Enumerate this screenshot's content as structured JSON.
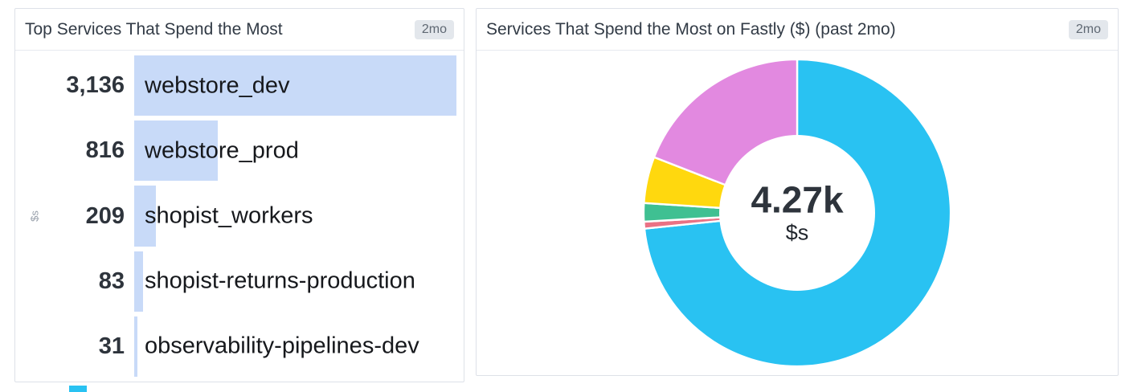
{
  "panels": [
    {
      "title": "Top Services That Spend the Most",
      "timeframe_badge": "2mo"
    },
    {
      "title": "Services That Spend the Most on Fastly ($) (past 2mo)",
      "timeframe_badge": "2mo"
    }
  ],
  "chart_data": [
    {
      "type": "bar",
      "orientation": "horizontal_toplist",
      "title": "Top Services That Spend the Most",
      "ylabel": "$s",
      "categories": [
        "webstore_dev",
        "webstore_prod",
        "shopist_workers",
        "shopist-returns-production",
        "observability-pipelines-dev"
      ],
      "values": [
        3136,
        816,
        209,
        83,
        31
      ],
      "display_values": [
        "3,136",
        "816",
        "209",
        "83",
        "31"
      ],
      "bar_color": "#c8daf8",
      "xlim": [
        0,
        3136
      ],
      "grid": false,
      "legend": "none"
    },
    {
      "type": "pie",
      "donut": true,
      "title": "Services That Spend the Most on Fastly ($) (past 2mo)",
      "labels": [
        "webstore_dev",
        "webstore_prod",
        "shopist_workers",
        "shopist-returns-production",
        "observability-pipelines-dev"
      ],
      "values": [
        3136,
        816,
        209,
        83,
        31
      ],
      "colors": [
        "#29c2f2",
        "#e289e0",
        "#ffd80e",
        "#3fc092",
        "#ea7285"
      ],
      "center_value": "4.27k",
      "center_unit": "$s",
      "start_angle": "top",
      "clockwise_draw_order": [
        0,
        4,
        3,
        2,
        1
      ],
      "legend": "none"
    }
  ],
  "partial_widget_below": {
    "color": "#29c2f2"
  }
}
